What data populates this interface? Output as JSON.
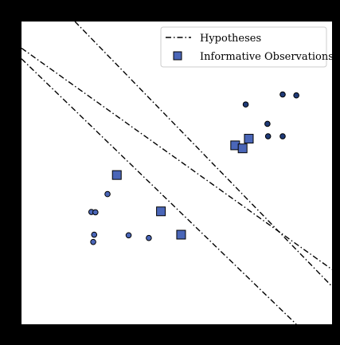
{
  "chart_data": {
    "type": "scatter",
    "xlim": [
      0,
      10
    ],
    "ylim": [
      0,
      10
    ],
    "grid": false,
    "axis_ticks": false,
    "legend": {
      "placement": "top-right",
      "entries": [
        {
          "label": "Hypotheses",
          "marker": "dash-dot-line",
          "color": "#000000"
        },
        {
          "label": "Informative Observations",
          "marker": "square",
          "color": "#4a66b8"
        }
      ]
    },
    "series": [
      {
        "kind": "points",
        "marker": "circle",
        "color": "#4a66b8",
        "points": [
          [
            2.77,
            4.3
          ],
          [
            2.25,
            3.71
          ],
          [
            2.38,
            3.7
          ],
          [
            2.34,
            2.96
          ],
          [
            2.31,
            2.72
          ],
          [
            3.45,
            2.94
          ],
          [
            4.1,
            2.85
          ]
        ]
      },
      {
        "kind": "points",
        "marker": "circle",
        "color": "#1f3a77",
        "points": [
          [
            7.22,
            7.26
          ],
          [
            8.41,
            7.59
          ],
          [
            8.85,
            7.56
          ],
          [
            7.92,
            6.62
          ],
          [
            7.94,
            6.21
          ],
          [
            8.41,
            6.21
          ]
        ]
      },
      {
        "name": "Informative Observations",
        "kind": "points",
        "marker": "square",
        "color": "#4a66b8",
        "points": [
          [
            3.07,
            4.93
          ],
          [
            4.49,
            3.73
          ],
          [
            5.14,
            2.96
          ],
          [
            6.88,
            5.91
          ],
          [
            7.12,
            5.81
          ],
          [
            7.32,
            6.13
          ]
        ]
      },
      {
        "name": "Hypotheses",
        "kind": "lines",
        "style": "dash-dot",
        "color": "#000000",
        "lines": [
          [
            [
              0,
              9.12
            ],
            [
              10,
              1.81
            ]
          ],
          [
            [
              0,
              8.77
            ],
            [
              8.85,
              0
            ]
          ],
          [
            [
              1.72,
              10
            ],
            [
              10,
              1.25
            ]
          ]
        ]
      }
    ]
  }
}
